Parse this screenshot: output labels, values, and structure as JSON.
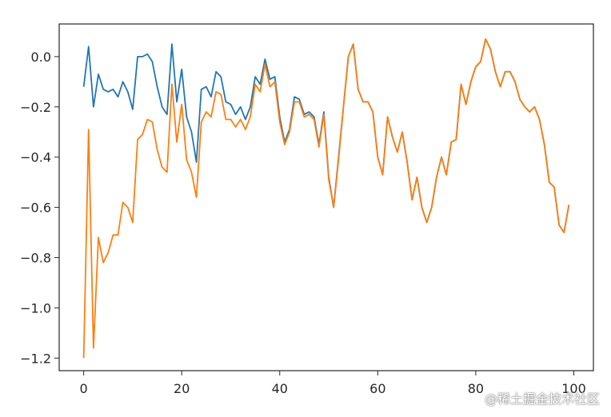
{
  "chart_data": {
    "type": "line",
    "title": "",
    "xlabel": "",
    "ylabel": "",
    "xlim": [
      -5,
      104
    ],
    "ylim": [
      -1.25,
      0.13
    ],
    "xticks": [
      0,
      20,
      40,
      60,
      80,
      100
    ],
    "xtick_labels": [
      "0",
      "20",
      "40",
      "60",
      "80",
      "100"
    ],
    "yticks": [
      0.0,
      -0.2,
      -0.4,
      -0.6,
      -0.8,
      -1.0,
      -1.2
    ],
    "ytick_labels": [
      "0.0",
      "−0.2",
      "−0.4",
      "−0.6",
      "−0.8",
      "−1.0",
      "−1.2"
    ],
    "grid": false,
    "legend": "none",
    "series": [
      {
        "color": "#1f77b4",
        "x": [
          0,
          1,
          2,
          3,
          4,
          5,
          6,
          7,
          8,
          9,
          10,
          11,
          12,
          13,
          14,
          15,
          16,
          17,
          18,
          19,
          20,
          21,
          22,
          23,
          24,
          25,
          26,
          27,
          28,
          29,
          30,
          31,
          32,
          33,
          34,
          35,
          36,
          37,
          38,
          39,
          40,
          41,
          42,
          43,
          44,
          45,
          46,
          47,
          48,
          49,
          50,
          51,
          52,
          53,
          54,
          55,
          56,
          57,
          58,
          59,
          60,
          61,
          62,
          63,
          64,
          65,
          66,
          67,
          68,
          69,
          70,
          71,
          72,
          73,
          74,
          75,
          76,
          77,
          78,
          79,
          80,
          81,
          82,
          83,
          84,
          85,
          86,
          87,
          88,
          89,
          90,
          91,
          92,
          93,
          94,
          95,
          96,
          97,
          98,
          99
        ],
        "values": [
          -0.12,
          0.04,
          -0.2,
          -0.07,
          -0.13,
          -0.14,
          -0.13,
          -0.16,
          -0.1,
          -0.14,
          -0.21,
          0.0,
          0.0,
          0.01,
          -0.02,
          -0.12,
          -0.2,
          -0.23,
          0.05,
          -0.18,
          -0.05,
          -0.24,
          -0.3,
          -0.42,
          -0.13,
          -0.12,
          -0.16,
          -0.06,
          -0.08,
          -0.18,
          -0.19,
          -0.23,
          -0.2,
          -0.25,
          -0.2,
          -0.08,
          -0.11,
          -0.01,
          -0.09,
          -0.08,
          -0.24,
          -0.34,
          -0.29,
          -0.16,
          -0.17,
          -0.23,
          -0.22,
          -0.24,
          -0.35,
          -0.22,
          -0.48,
          -0.6,
          -0.4,
          -0.2,
          0.0,
          0.05,
          -0.13,
          -0.18,
          -0.18,
          -0.22,
          -0.4,
          -0.47,
          -0.24,
          -0.32,
          -0.38,
          -0.3,
          -0.42,
          -0.57,
          -0.48,
          -0.6,
          -0.66,
          -0.6,
          -0.48,
          -0.4,
          -0.47,
          -0.34,
          -0.33,
          -0.11,
          -0.19,
          -0.1,
          -0.04,
          -0.02,
          0.07,
          0.03,
          -0.06,
          -0.12,
          -0.06,
          -0.06,
          -0.1,
          -0.17,
          -0.2,
          -0.22,
          -0.2,
          -0.25,
          -0.35,
          -0.5,
          -0.52,
          -0.67,
          -0.7,
          -0.59
        ]
      },
      {
        "color": "#ff7f0e",
        "x": [
          0,
          1,
          2,
          3,
          4,
          5,
          6,
          7,
          8,
          9,
          10,
          11,
          12,
          13,
          14,
          15,
          16,
          17,
          18,
          19,
          20,
          21,
          22,
          23,
          24,
          25,
          26,
          27,
          28,
          29,
          30,
          31,
          32,
          33,
          34,
          35,
          36,
          37,
          38,
          39,
          40,
          41,
          42,
          43,
          44,
          45,
          46,
          47,
          48,
          49,
          50,
          51,
          52,
          53,
          54,
          55,
          56,
          57,
          58,
          59,
          60,
          61,
          62,
          63,
          64,
          65,
          66,
          67,
          68,
          69,
          70,
          71,
          72,
          73,
          74,
          75,
          76,
          77,
          78,
          79,
          80,
          81,
          82,
          83,
          84,
          85,
          86,
          87,
          88,
          89,
          90,
          91,
          92,
          93,
          94,
          95,
          96,
          97,
          98,
          99
        ],
        "values": [
          -1.2,
          -0.29,
          -1.16,
          -0.72,
          -0.82,
          -0.78,
          -0.71,
          -0.71,
          -0.58,
          -0.6,
          -0.66,
          -0.33,
          -0.31,
          -0.25,
          -0.26,
          -0.37,
          -0.44,
          -0.46,
          -0.11,
          -0.34,
          -0.19,
          -0.41,
          -0.46,
          -0.56,
          -0.26,
          -0.22,
          -0.24,
          -0.14,
          -0.15,
          -0.25,
          -0.25,
          -0.28,
          -0.25,
          -0.29,
          -0.24,
          -0.11,
          -0.14,
          -0.03,
          -0.12,
          -0.1,
          -0.26,
          -0.35,
          -0.3,
          -0.18,
          -0.18,
          -0.24,
          -0.23,
          -0.25,
          -0.36,
          -0.23,
          -0.49,
          -0.6,
          -0.41,
          -0.2,
          0.0,
          0.05,
          -0.13,
          -0.18,
          -0.18,
          -0.22,
          -0.4,
          -0.47,
          -0.24,
          -0.32,
          -0.38,
          -0.3,
          -0.42,
          -0.57,
          -0.48,
          -0.6,
          -0.66,
          -0.6,
          -0.48,
          -0.4,
          -0.47,
          -0.34,
          -0.33,
          -0.11,
          -0.19,
          -0.1,
          -0.04,
          -0.02,
          0.07,
          0.03,
          -0.06,
          -0.12,
          -0.06,
          -0.06,
          -0.1,
          -0.17,
          -0.2,
          -0.22,
          -0.2,
          -0.25,
          -0.35,
          -0.5,
          -0.52,
          -0.67,
          -0.7,
          -0.59
        ]
      }
    ]
  },
  "watermark": "@稀土掘金技术社区"
}
